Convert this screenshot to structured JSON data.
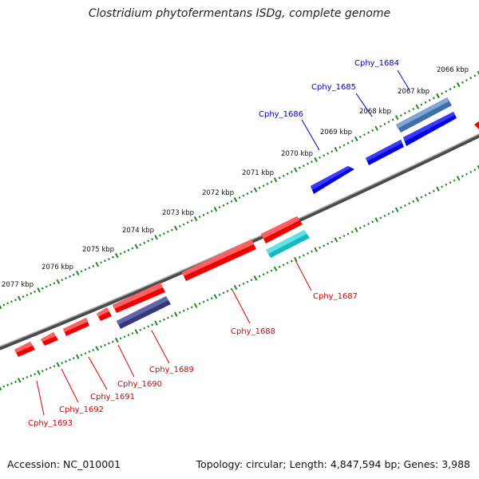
{
  "title": "Clostridium phytofermentans ISDg, complete genome",
  "footer": {
    "accession": "Accession: NC_010001",
    "summary": "Topology: circular; Length: 4,847,594 bp; Genes: 3,988"
  },
  "scale_labels": [
    "2066 kbp",
    "2067 kbp",
    "2068 kbp",
    "2069 kbp",
    "2070 kbp",
    "2071 kbp",
    "2072 kbp",
    "2073 kbp",
    "2074 kbp",
    "2075 kbp",
    "2076 kbp",
    "2077 kbp"
  ],
  "genes_forward": [
    {
      "name": "Cphy_1684",
      "color": "#4f7fbf"
    },
    {
      "name": "Cphy_1685",
      "color": "#0000ee"
    },
    {
      "name": "Cphy_1686",
      "color": "#0000ee"
    }
  ],
  "genes_reverse": [
    {
      "name": "Cphy_1687",
      "color": "#ff0000"
    },
    {
      "name": "Cphy_1688",
      "color": "#ff0000"
    },
    {
      "name": "Cphy_1689",
      "color": "#ff0000"
    },
    {
      "name": "Cphy_1690",
      "color": "#ff0000"
    },
    {
      "name": "Cphy_1691",
      "color": "#ff0000"
    },
    {
      "name": "Cphy_1692",
      "color": "#ff0000"
    },
    {
      "name": "Cphy_1693",
      "color": "#ff0000"
    }
  ],
  "colors": {
    "backbone": "#808080",
    "ticks": "#1a8a1a",
    "forward_label": "#0000cc",
    "reverse_label": "#dd0000",
    "teal_feature": "#20c8d0",
    "slate_feature": "#3c3c8c"
  }
}
